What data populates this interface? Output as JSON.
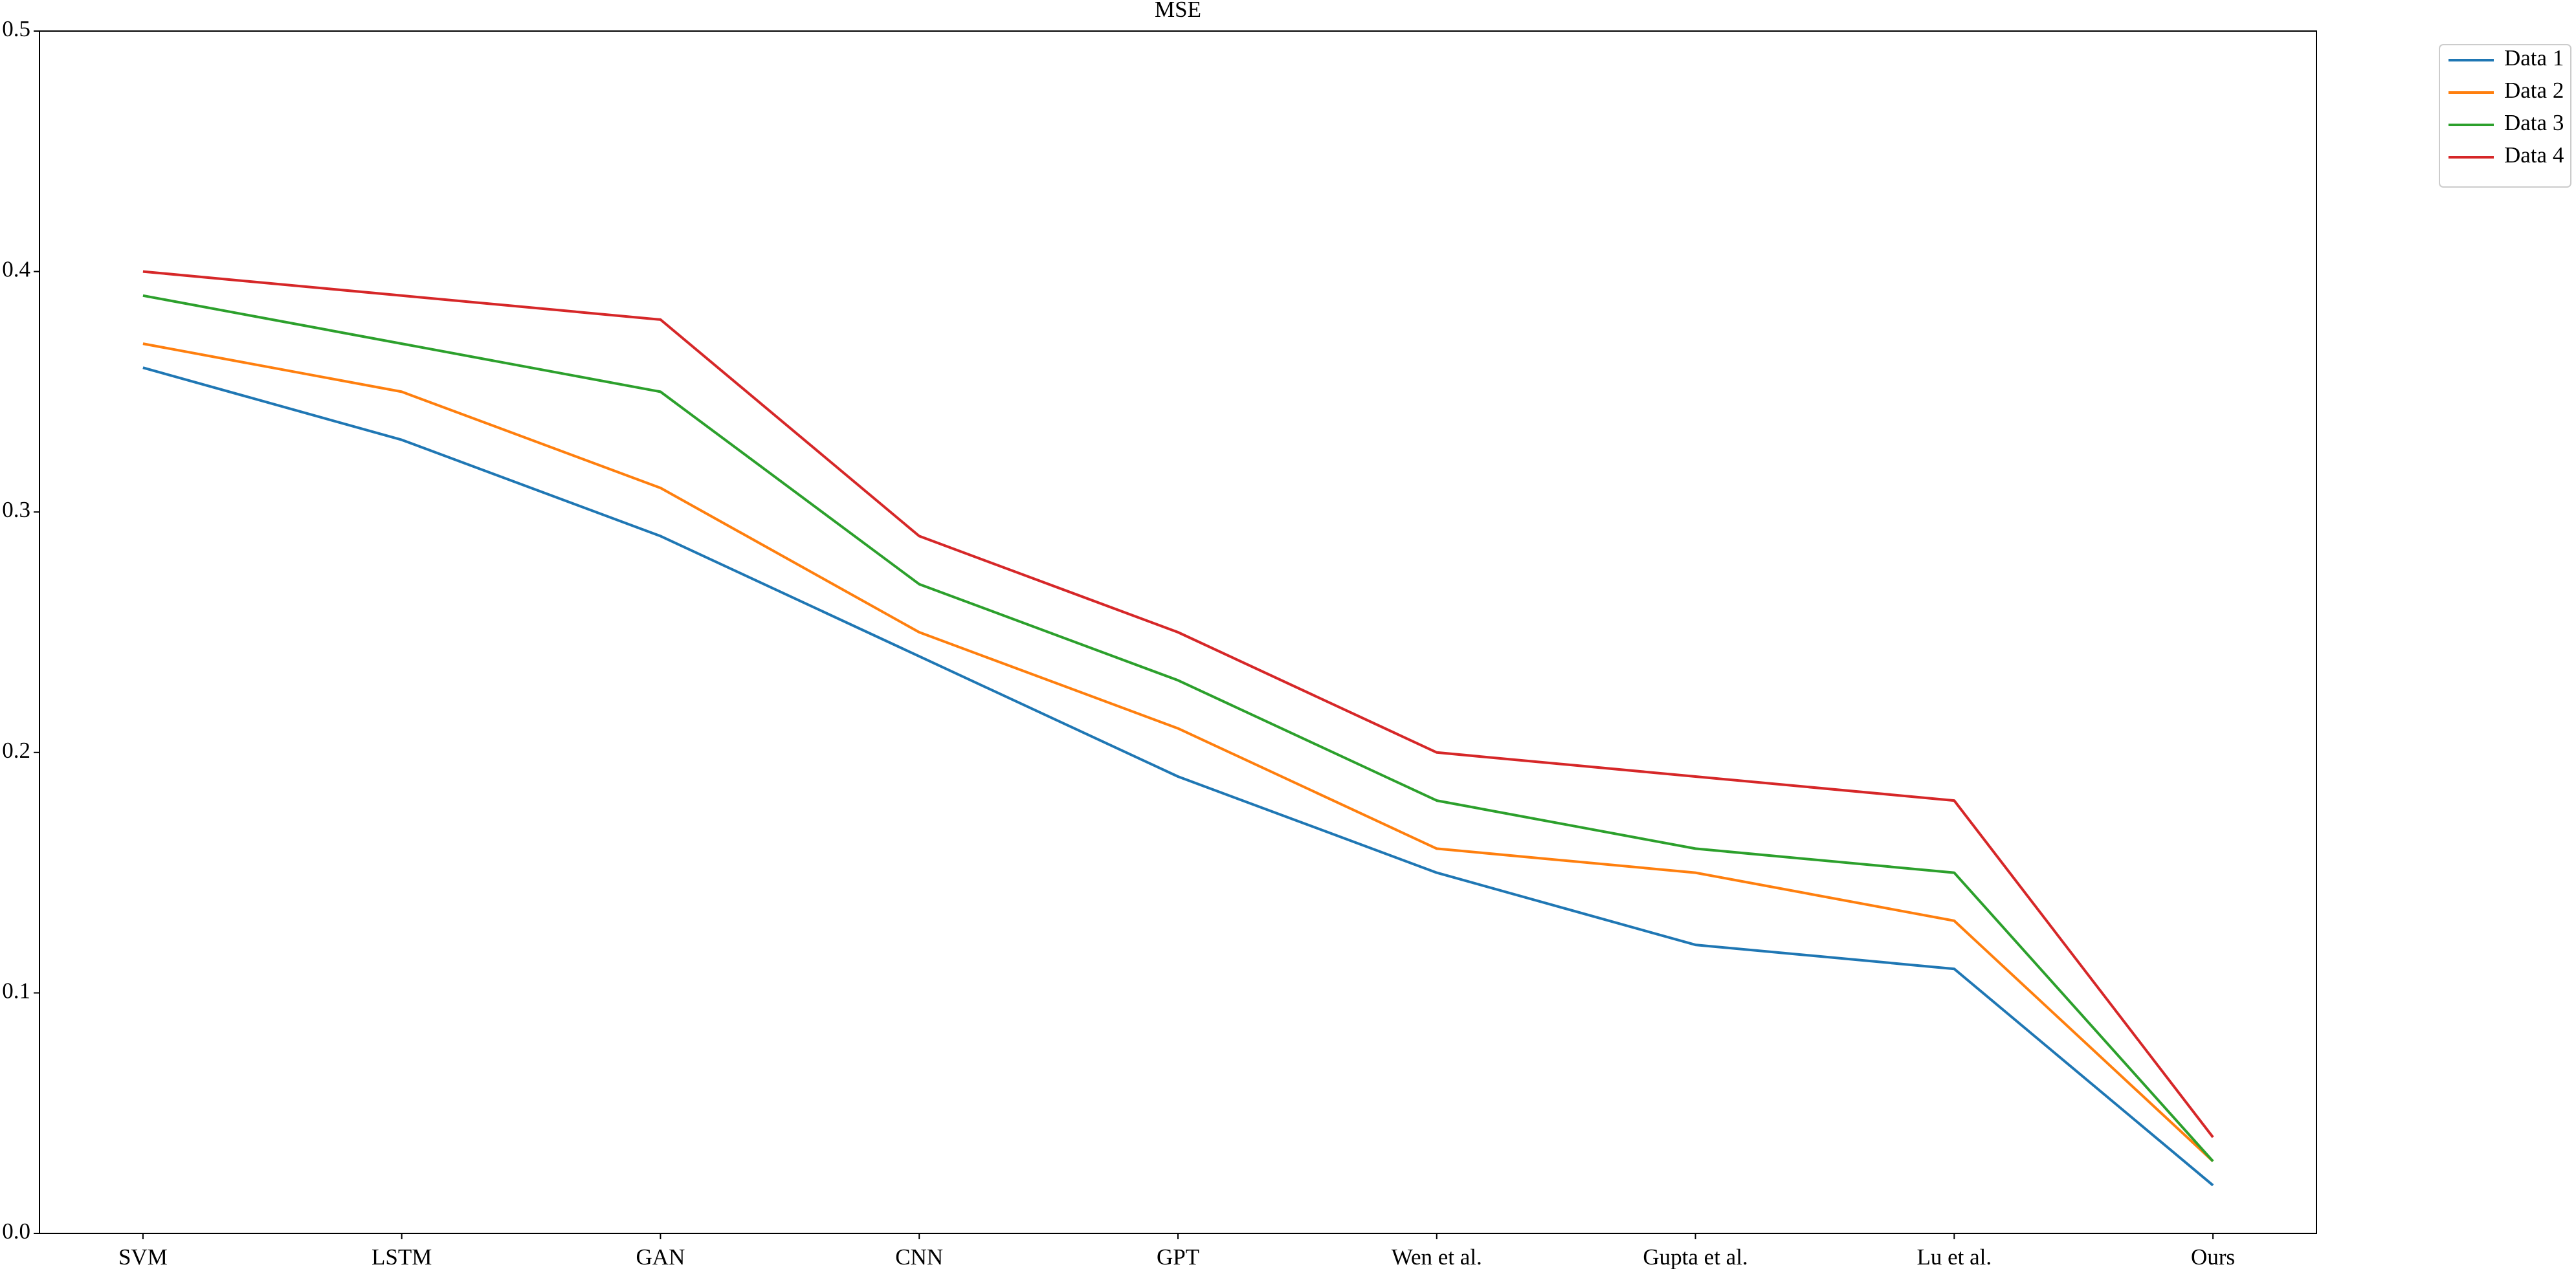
{
  "chart_data": {
    "type": "line",
    "title": "MSE",
    "categories": [
      "SVM",
      "LSTM",
      "GAN",
      "CNN",
      "GPT",
      "Wen et al.",
      "Gupta et al.",
      "Lu et al.",
      "Ours"
    ],
    "series": [
      {
        "name": "Data 1",
        "color": "#1f77b4",
        "values": [
          0.36,
          0.33,
          0.29,
          0.24,
          0.19,
          0.15,
          0.12,
          0.11,
          0.02
        ]
      },
      {
        "name": "Data 2",
        "color": "#ff7f0e",
        "values": [
          0.37,
          0.35,
          0.31,
          0.25,
          0.21,
          0.16,
          0.15,
          0.13,
          0.03
        ]
      },
      {
        "name": "Data 3",
        "color": "#2ca02c",
        "values": [
          0.39,
          0.37,
          0.35,
          0.27,
          0.23,
          0.18,
          0.16,
          0.15,
          0.03
        ]
      },
      {
        "name": "Data 4",
        "color": "#d62728",
        "values": [
          0.4,
          0.39,
          0.38,
          0.29,
          0.25,
          0.2,
          0.19,
          0.18,
          0.04
        ]
      }
    ],
    "ylim": [
      0,
      0.5
    ],
    "yticks": [
      {
        "value": 0,
        "label": "0.0"
      },
      0.1,
      0.2,
      0.3,
      0.4,
      0.5
    ],
    "legend": "outside-upper-right"
  }
}
